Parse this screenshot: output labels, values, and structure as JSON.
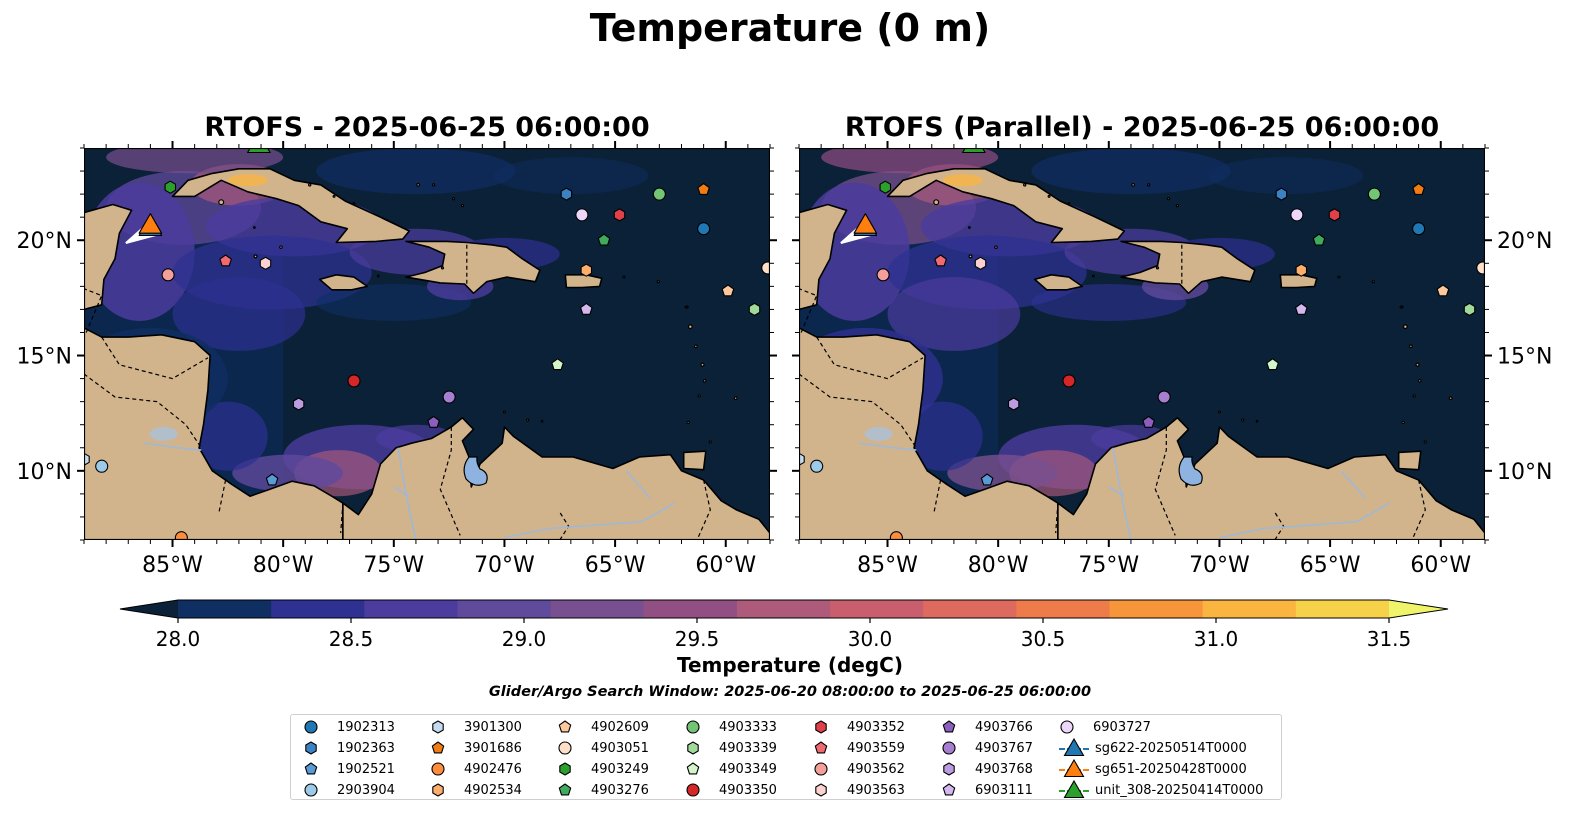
{
  "figure": {
    "title": "Temperature (0 m)",
    "panels": [
      {
        "title": "RTOFS - 2025-06-25 06:00:00"
      },
      {
        "title": "RTOFS (Parallel) - 2025-06-25 06:00:00"
      }
    ],
    "lon_labels": [
      "85°W",
      "80°W",
      "75°W",
      "70°W",
      "65°W",
      "60°W"
    ],
    "lat_labels": [
      "20°N",
      "15°N",
      "10°N"
    ],
    "colorbar": {
      "label": "Temperature (degC)",
      "tick_labels": [
        "28.0",
        "28.5",
        "29.0",
        "29.5",
        "30.0",
        "30.5",
        "31.0",
        "31.5"
      ],
      "colors": [
        "#0b2137",
        "#0f2e62",
        "#2e3192",
        "#4b3c9e",
        "#5f4a9c",
        "#78508f",
        "#924f84",
        "#ad5a7b",
        "#c95f6e",
        "#de6a5f",
        "#ee7c4b",
        "#f6953a",
        "#f9b53f",
        "#f6d24a",
        "#f0f46a"
      ]
    },
    "search_window": "Glider/Argo Search Window: 2025-06-20 08:00:00 to 2025-06-25 06:00:00"
  },
  "chart_data": {
    "type": "map",
    "extent": {
      "lon": [
        -89,
        -58
      ],
      "lat": [
        7,
        24
      ]
    },
    "variable": "Temperature",
    "depth": "0 m",
    "units": "degC",
    "color_range": [
      28.0,
      31.5
    ],
    "argo_floats": [
      {
        "id": "1902313",
        "lon": -61,
        "lat": 20.5
      },
      {
        "id": "1902363",
        "lon": -67.2,
        "lat": 22.0
      },
      {
        "id": "1902521",
        "lon": -80.5,
        "lat": 9.6
      },
      {
        "id": "2903904",
        "lon": -88.2,
        "lat": 10.2
      },
      {
        "id": "3901300",
        "lon": -89,
        "lat": 10.5
      },
      {
        "id": "3901686",
        "lon": -61,
        "lat": 22.2
      },
      {
        "id": "4902476",
        "lon": -84.6,
        "lat": 7.1
      },
      {
        "id": "4902534",
        "lon": -66.3,
        "lat": 18.7
      },
      {
        "id": "4902609",
        "lon": -59.9,
        "lat": 17.8
      },
      {
        "id": "4903051",
        "lon": -58.1,
        "lat": 18.8
      },
      {
        "id": "4903249",
        "lon": -85.1,
        "lat": 22.3
      },
      {
        "id": "4903276",
        "lon": -65.5,
        "lat": 20.0
      },
      {
        "id": "4903333",
        "lon": -63.0,
        "lat": 22.0
      },
      {
        "id": "4903339",
        "lon": -58.7,
        "lat": 17.0
      },
      {
        "id": "4903349",
        "lon": -67.6,
        "lat": 14.6
      },
      {
        "id": "4903350",
        "lon": -76.8,
        "lat": 13.9
      },
      {
        "id": "4903352",
        "lon": -64.8,
        "lat": 21.1
      },
      {
        "id": "4903559",
        "lon": -82.6,
        "lat": 19.1
      },
      {
        "id": "4903562",
        "lon": -85.2,
        "lat": 18.5
      },
      {
        "id": "4903563",
        "lon": -80.8,
        "lat": 19.0
      },
      {
        "id": "4903766",
        "lon": -73.2,
        "lat": 12.1
      },
      {
        "id": "4903767",
        "lon": -72.5,
        "lat": 13.2
      },
      {
        "id": "4903768",
        "lon": -79.3,
        "lat": 12.9
      },
      {
        "id": "6903111",
        "lon": -66.3,
        "lat": 17.0
      },
      {
        "id": "6903727",
        "lon": -66.5,
        "lat": 21.1
      }
    ],
    "gliders": [
      {
        "id": "sg622-20250514T0000",
        "lon": -86.0,
        "lat": 20.4
      },
      {
        "id": "sg651-20250428T0000",
        "lon": -86.0,
        "lat": 20.5
      },
      {
        "id": "unit_308-20250414T0000",
        "lon": -81.1,
        "lat": 24.0
      }
    ]
  },
  "legend": {
    "items": [
      {
        "label": "1902313",
        "shape": "circle",
        "color": "#1f77b4"
      },
      {
        "label": "1902363",
        "shape": "hexagon",
        "color": "#3b82c4"
      },
      {
        "label": "1902521",
        "shape": "pentagon",
        "color": "#5a9bd5"
      },
      {
        "label": "2903904",
        "shape": "circle",
        "color": "#9ecae9"
      },
      {
        "label": "3901300",
        "shape": "hexagon",
        "color": "#c6dbef"
      },
      {
        "label": "3901686",
        "shape": "pentagon",
        "color": "#f07c13"
      },
      {
        "label": "4902476",
        "shape": "circle",
        "color": "#fd8d3c"
      },
      {
        "label": "4902534",
        "shape": "hexagon",
        "color": "#fdae6b"
      },
      {
        "label": "4902609",
        "shape": "pentagon",
        "color": "#fdc89b"
      },
      {
        "label": "4903051",
        "shape": "circle",
        "color": "#fee0c8"
      },
      {
        "label": "4903249",
        "shape": "hexagon",
        "color": "#2ca02c"
      },
      {
        "label": "4903276",
        "shape": "pentagon",
        "color": "#41ab5d"
      },
      {
        "label": "4903333",
        "shape": "circle",
        "color": "#74c476"
      },
      {
        "label": "4903339",
        "shape": "hexagon",
        "color": "#a1d99b"
      },
      {
        "label": "4903349",
        "shape": "pentagon",
        "color": "#d4f5c9"
      },
      {
        "label": "4903350",
        "shape": "circle",
        "color": "#d62728"
      },
      {
        "label": "4903352",
        "shape": "hexagon",
        "color": "#e0404a"
      },
      {
        "label": "4903559",
        "shape": "pentagon",
        "color": "#f06a72"
      },
      {
        "label": "4903562",
        "shape": "circle",
        "color": "#f4a09a"
      },
      {
        "label": "4903563",
        "shape": "hexagon",
        "color": "#fcd2d0"
      },
      {
        "label": "4903766",
        "shape": "pentagon",
        "color": "#8c5fbf"
      },
      {
        "label": "4903767",
        "shape": "circle",
        "color": "#a67fd0"
      },
      {
        "label": "4903768",
        "shape": "hexagon",
        "color": "#bc9ce0"
      },
      {
        "label": "6903111",
        "shape": "pentagon",
        "color": "#d2b8ee"
      },
      {
        "label": "6903727",
        "shape": "circle",
        "color": "#ecd7fb"
      },
      {
        "label": "sg622-20250514T0000",
        "shape": "triangle",
        "color": "#1f77b4"
      },
      {
        "label": "sg651-20250428T0000",
        "shape": "triangle",
        "color": "#ff7f0e"
      },
      {
        "label": "unit_308-20250414T0000",
        "shape": "triangle",
        "color": "#2ca02c"
      }
    ]
  },
  "colors": {
    "ocean_deep": "#0b2137",
    "land": "#d2b48c",
    "coast": "#000000",
    "river": "#9fb8d6"
  }
}
